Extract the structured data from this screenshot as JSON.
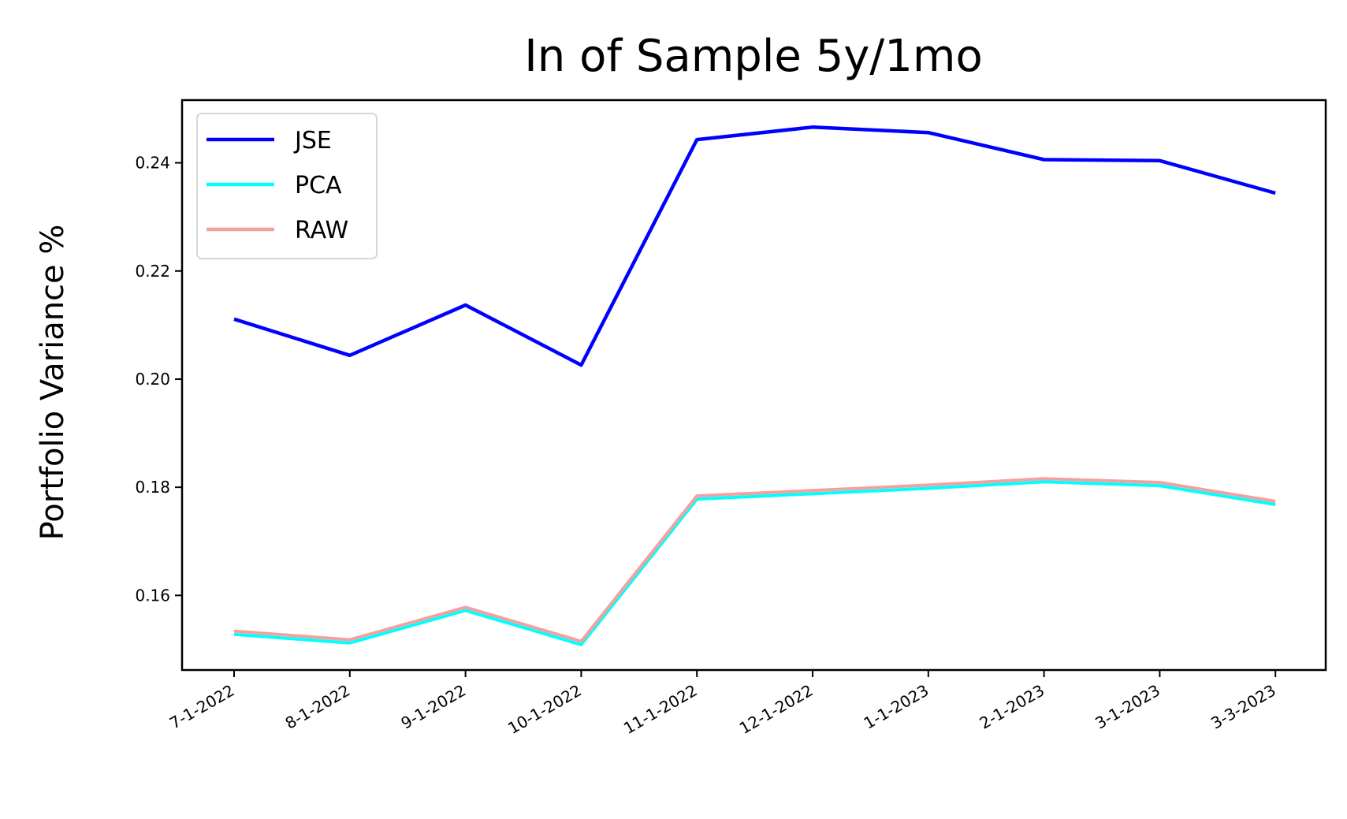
{
  "chart_data": {
    "type": "line",
    "title": "In of Sample 5y/1mo",
    "xlabel": "",
    "ylabel": "Portfolio Variance %",
    "categories": [
      "7-1-2022",
      "8-1-2022",
      "9-1-2022",
      "10-1-2022",
      "11-1-2022",
      "12-1-2022",
      "1-1-2023",
      "2-1-2023",
      "3-1-2023",
      "3-3-2023"
    ],
    "series": [
      {
        "name": "JSE",
        "color": "#0000ff",
        "values": [
          0.2111,
          0.2044,
          0.2137,
          0.2026,
          0.2443,
          0.2466,
          0.2456,
          0.2406,
          0.2404,
          0.2344
        ]
      },
      {
        "name": "PCA",
        "color": "#00ffff",
        "values": [
          0.1528,
          0.1512,
          0.1572,
          0.1509,
          0.1778,
          0.1788,
          0.1798,
          0.181,
          0.1803,
          0.1768
        ]
      },
      {
        "name": "RAW",
        "color": "#f4a0a0",
        "values": [
          0.1534,
          0.1518,
          0.1578,
          0.1515,
          0.1784,
          0.1794,
          0.1804,
          0.1816,
          0.1809,
          0.1774
        ]
      }
    ],
    "yticks": [
      0.16,
      0.18,
      0.2,
      0.22,
      0.24
    ],
    "ytick_labels": [
      "0.16",
      "0.18",
      "0.20",
      "0.22",
      "0.24"
    ],
    "ylim": [
      0.1462,
      0.2516
    ],
    "grid": false,
    "legend_position": "top-left"
  }
}
